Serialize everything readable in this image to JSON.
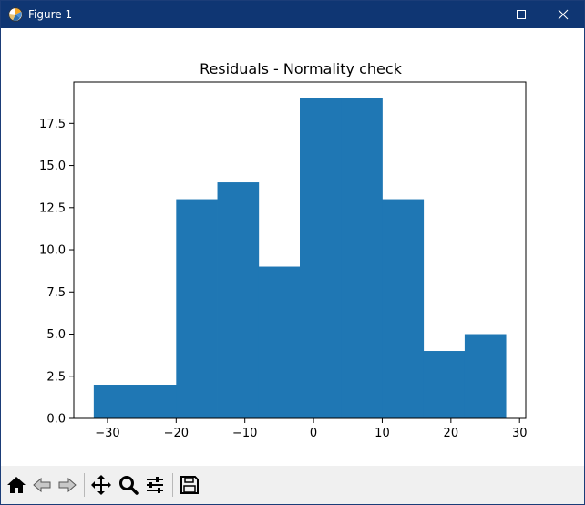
{
  "window": {
    "title": "Figure 1",
    "controls": {
      "minimize_icon": "minimize-icon",
      "maximize_icon": "maximize-icon",
      "close_icon": "close-icon"
    },
    "titlebar_color": "#0f3673"
  },
  "toolbar": {
    "buttons": [
      {
        "name": "home",
        "icon": "home-icon"
      },
      {
        "name": "back",
        "icon": "back-arrow-icon"
      },
      {
        "name": "forward",
        "icon": "forward-arrow-icon"
      },
      {
        "name": "pan",
        "icon": "move-icon"
      },
      {
        "name": "zoom",
        "icon": "magnifier-icon"
      },
      {
        "name": "configure-subplots",
        "icon": "sliders-icon"
      },
      {
        "name": "save",
        "icon": "floppy-disk-icon"
      }
    ]
  },
  "chart_data": {
    "type": "bar",
    "title": "Residuals - Normality check",
    "xlabel": "",
    "ylabel": "",
    "bar_color": "#1f77b4",
    "bin_edges": [
      -32,
      -26,
      -20,
      -14,
      -8,
      -2,
      4,
      10,
      16,
      22,
      28
    ],
    "values": [
      2,
      2,
      13,
      14,
      9,
      19,
      19,
      13,
      4,
      5
    ],
    "xlim": [
      -34.9,
      30.9
    ],
    "ylim": [
      0,
      19.95
    ],
    "xticks": [
      -30,
      -20,
      -10,
      0,
      10,
      20,
      30
    ],
    "xtick_labels": [
      "−30",
      "−20",
      "−10",
      "0",
      "10",
      "20",
      "30"
    ],
    "yticks": [
      0,
      2.5,
      5,
      7.5,
      10,
      12.5,
      15,
      17.5
    ],
    "ytick_labels": [
      "0.0",
      "2.5",
      "5.0",
      "7.5",
      "10.0",
      "12.5",
      "15.0",
      "17.5"
    ],
    "grid": false,
    "legend": false
  }
}
